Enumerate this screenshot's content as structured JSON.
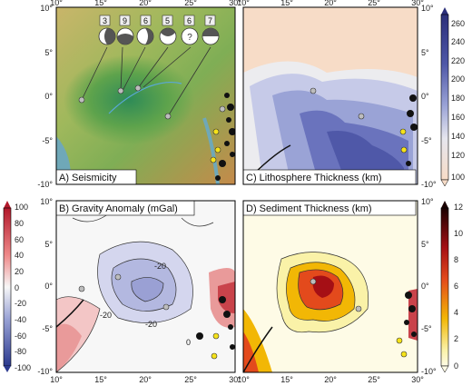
{
  "panels": [
    {
      "id": "A",
      "label": "A) Seismicity"
    },
    {
      "id": "C",
      "label": "C) Lithosphere Thickness (km)"
    },
    {
      "id": "B",
      "label": "B) Gravity Anomaly (mGal)"
    },
    {
      "id": "D",
      "label": "D) Sediment Thickness (km)"
    }
  ],
  "axes": {
    "lon_ticks": [
      "10°",
      "15°",
      "20°",
      "25°",
      "30°"
    ],
    "lat_ticks": [
      "10°",
      "5°",
      "0°",
      "-5°",
      "-10°"
    ]
  },
  "colorbars": {
    "lithosphere": {
      "ticks": [
        "260",
        "240",
        "220",
        "200",
        "180",
        "160",
        "140",
        "120",
        "100"
      ],
      "range": [
        100,
        260
      ]
    },
    "gravity": {
      "ticks": [
        "100",
        "80",
        "60",
        "40",
        "20",
        "0",
        "-20",
        "-40",
        "-60",
        "-80",
        "-100"
      ],
      "range": [
        -100,
        100
      ]
    },
    "sediment": {
      "ticks": [
        "12",
        "10",
        "8",
        "6",
        "4",
        "2",
        "0"
      ],
      "range": [
        0,
        12
      ]
    }
  },
  "seismicity_counts": [
    "3",
    "9",
    "6",
    "5",
    "6",
    "7"
  ],
  "gravity_contour_labels": [
    "-20",
    "-20",
    "-20",
    "0"
  ],
  "colors": {
    "seismic_yellow": "#f5e21a",
    "event_grey": "#bdbdbd",
    "ocean": "#6fa8b8"
  }
}
